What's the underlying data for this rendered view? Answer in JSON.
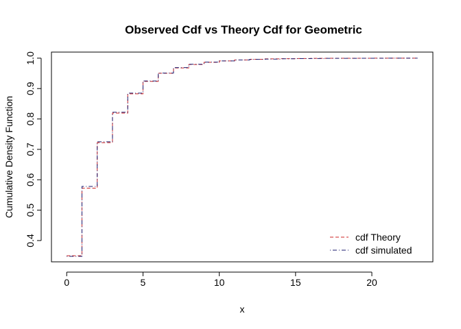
{
  "chart_data": {
    "type": "line",
    "title": "Observed Cdf vs Theory Cdf for Geometric",
    "xlabel": "x",
    "ylabel": "Cumulative Density Function",
    "xlim": [
      -1,
      24
    ],
    "ylim": [
      0.33,
      1.02
    ],
    "x_ticks": [
      0,
      5,
      10,
      15,
      20
    ],
    "y_ticks": [
      0.4,
      0.5,
      0.6,
      0.7,
      0.8,
      0.9,
      1.0
    ],
    "y_tick_labels": [
      "0.4",
      "0.5",
      "0.6",
      "0.7",
      "0.8",
      "0.9",
      "1.0"
    ],
    "legend_position": "bottom-right",
    "step": true,
    "x": [
      0,
      1,
      2,
      3,
      4,
      5,
      6,
      7,
      8,
      9,
      10,
      11,
      12,
      13,
      14,
      15,
      16,
      17,
      18,
      19,
      20,
      21,
      22,
      23
    ],
    "series": [
      {
        "name": "cdf Theory",
        "color": "#cc2222",
        "dash": "dashed",
        "values": [
          0.35,
          0.5725,
          0.7221,
          0.8194,
          0.8826,
          0.9237,
          0.9504,
          0.9678,
          0.979,
          0.9864,
          0.9911,
          0.9942,
          0.9963,
          0.9976,
          0.9984,
          0.999,
          0.9993,
          0.9996,
          0.9997,
          0.9998,
          0.9999,
          0.9999,
          1.0,
          1.0
        ]
      },
      {
        "name": "cdf simulated",
        "color": "#1a1a6e",
        "dash": "dotdash",
        "values": [
          0.348,
          0.578,
          0.725,
          0.822,
          0.885,
          0.925,
          0.951,
          0.969,
          0.98,
          0.987,
          0.991,
          0.994,
          0.996,
          0.997,
          0.998,
          0.9985,
          0.999,
          0.9993,
          0.9995,
          0.9997,
          0.9998,
          0.9999,
          1.0,
          1.0
        ]
      }
    ]
  }
}
